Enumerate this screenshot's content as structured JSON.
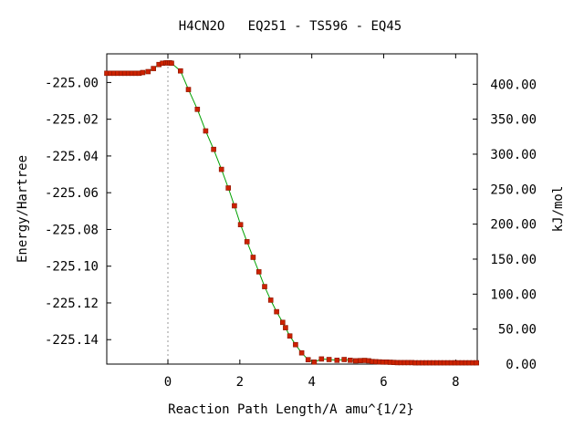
{
  "chart_data": {
    "type": "line",
    "title": "H4CN2O   EQ251 - TS596 - EQ45",
    "xlabel": "Reaction Path Length/A amu^{1/2}",
    "ylabel_left": "Energy/Hartree",
    "ylabel_right": "kJ/mol",
    "xlim": [
      -1.7,
      8.6
    ],
    "ylim": [
      -225.1533,
      -224.9844
    ],
    "y2lim": [
      0,
      443.4
    ],
    "x_ticks": [
      0,
      2,
      4,
      6,
      8
    ],
    "x_tick_labels": [
      "0",
      "2",
      "4",
      "6",
      "8"
    ],
    "y_ticks": [
      -225.0,
      -225.02,
      -225.04,
      -225.06,
      -225.08,
      -225.1,
      -225.12,
      -225.14
    ],
    "y_tick_labels": [
      "-225.00",
      "-225.02",
      "-225.04",
      "-225.06",
      "-225.08",
      "-225.10",
      "-225.12",
      "-225.14"
    ],
    "y2_ticks": [
      0,
      50,
      100,
      150,
      200,
      250,
      300,
      350,
      400
    ],
    "y2_tick_labels": [
      "0.00",
      "50.00",
      "100.00",
      "150.00",
      "200.00",
      "250.00",
      "300.00",
      "350.00",
      "400.00"
    ],
    "ts_marker_x": 0,
    "grid": false,
    "line_color": "#00a000",
    "marker_color": "#cc2200",
    "series": [
      {
        "x": [
          -1.7,
          -1.6,
          -1.5,
          -1.4,
          -1.3,
          -1.2,
          -1.1,
          -1.0,
          -0.9,
          -0.8,
          -0.7,
          -0.55,
          -0.4,
          -0.25,
          -0.15,
          -0.05,
          0.0,
          0.05,
          0.1,
          0.35,
          0.57,
          0.82,
          1.05,
          1.27,
          1.49,
          1.68,
          1.85,
          2.02,
          2.2,
          2.37,
          2.53,
          2.69,
          2.86,
          3.02,
          3.19,
          3.27,
          3.39,
          3.55,
          3.72,
          3.9,
          4.07,
          4.27,
          4.48,
          4.7,
          4.9,
          5.07,
          5.22,
          5.35,
          5.47,
          5.58,
          5.68,
          5.78,
          5.88,
          5.98,
          6.08,
          6.18,
          6.28,
          6.38,
          6.48,
          6.58,
          6.68,
          6.78,
          6.88,
          6.98,
          7.08,
          7.18,
          7.28,
          7.38,
          7.48,
          7.58,
          7.68,
          7.78,
          7.88,
          7.98,
          8.08,
          8.18,
          8.28,
          8.38,
          8.48,
          8.58
        ],
        "y": [
          -224.995,
          -224.995,
          -224.995,
          -224.995,
          -224.995,
          -224.995,
          -224.995,
          -224.995,
          -224.995,
          -224.995,
          -224.9946,
          -224.9941,
          -224.9924,
          -224.9902,
          -224.9895,
          -224.9893,
          -224.9893,
          -224.9893,
          -224.9895,
          -224.9937,
          -225.0038,
          -225.0146,
          -225.0264,
          -225.0364,
          -225.0473,
          -225.0574,
          -225.0671,
          -225.0774,
          -225.0867,
          -225.0952,
          -225.1031,
          -225.1111,
          -225.1185,
          -225.1248,
          -225.1306,
          -225.1335,
          -225.138,
          -225.1427,
          -225.1472,
          -225.1509,
          -225.1522,
          -225.1505,
          -225.1508,
          -225.1512,
          -225.1508,
          -225.1512,
          -225.1515,
          -225.1514,
          -225.1513,
          -225.1515,
          -225.1519,
          -225.152,
          -225.1521,
          -225.1522,
          -225.1522,
          -225.1523,
          -225.1524,
          -225.1525,
          -225.1525,
          -225.1525,
          -225.1525,
          -225.1525,
          -225.1526,
          -225.1526,
          -225.1526,
          -225.1526,
          -225.1526,
          -225.1526,
          -225.1526,
          -225.1526,
          -225.1526,
          -225.1526,
          -225.1526,
          -225.1526,
          -225.1526,
          -225.1526,
          -225.1526,
          -225.1526,
          -225.1526,
          -225.1526
        ]
      }
    ]
  }
}
